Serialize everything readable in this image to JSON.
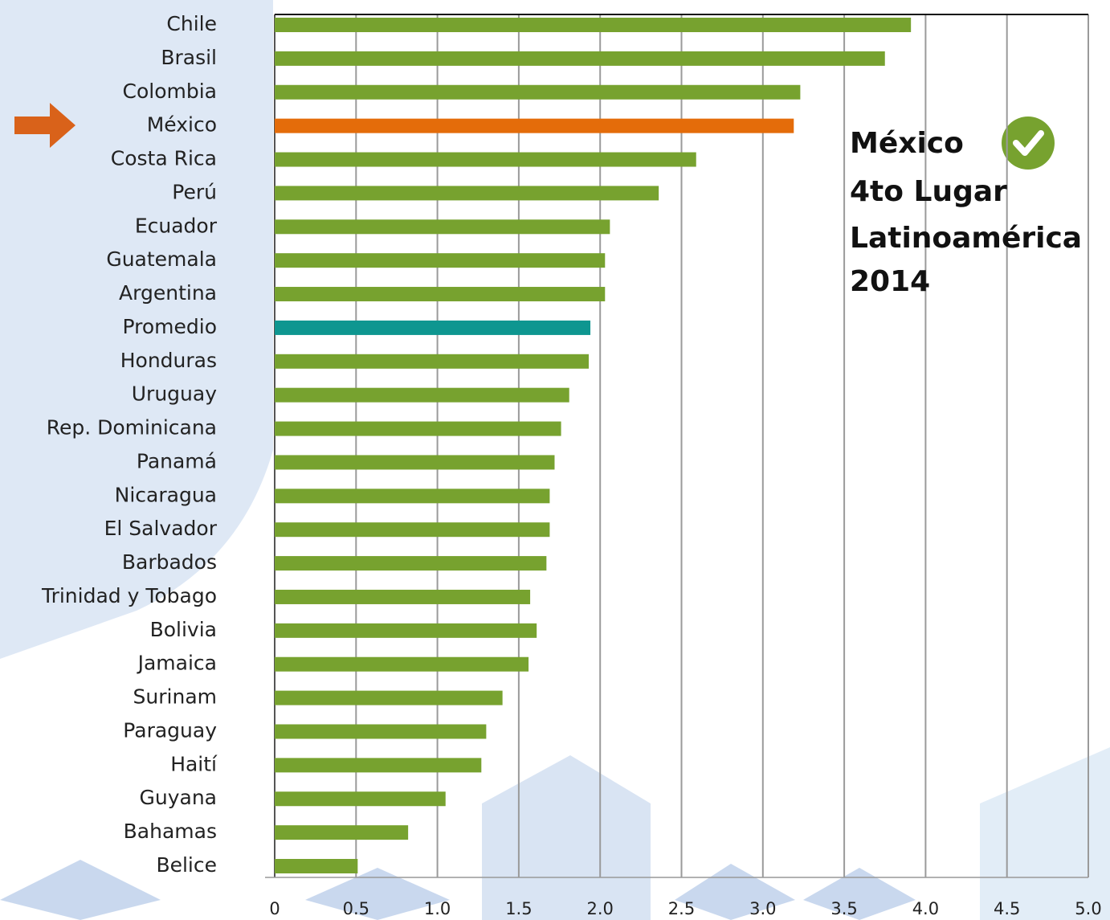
{
  "chart_data": {
    "type": "barh",
    "categories": [
      "Chile",
      "Brasil",
      "Colombia",
      "México",
      "Costa Rica",
      "Perú",
      "Ecuador",
      "Guatemala",
      "Argentina",
      "Promedio",
      "Honduras",
      "Uruguay",
      "Rep. Dominicana",
      "Panamá",
      "Nicaragua",
      "El Salvador",
      "Barbados",
      "Trinidad y Tobago",
      "Bolivia",
      "Jamaica",
      "Surinam",
      "Paraguay",
      "Haití",
      "Guyana",
      "Bahamas",
      "Belice"
    ],
    "values": [
      3.91,
      3.75,
      3.23,
      3.19,
      2.59,
      2.36,
      2.06,
      2.03,
      2.03,
      1.94,
      1.93,
      1.81,
      1.76,
      1.72,
      1.69,
      1.69,
      1.67,
      1.57,
      1.61,
      1.56,
      1.4,
      1.3,
      1.27,
      1.05,
      0.82,
      0.51
    ],
    "colors": [
      "#77a22f",
      "#77a22f",
      "#77a22f",
      "#e46c0a",
      "#77a22f",
      "#77a22f",
      "#77a22f",
      "#77a22f",
      "#77a22f",
      "#0e9690",
      "#77a22f",
      "#77a22f",
      "#77a22f",
      "#77a22f",
      "#77a22f",
      "#77a22f",
      "#77a22f",
      "#77a22f",
      "#77a22f",
      "#77a22f",
      "#77a22f",
      "#77a22f",
      "#77a22f",
      "#77a22f",
      "#77a22f",
      "#77a22f"
    ],
    "xlim": [
      0,
      5
    ],
    "xticks": [
      0,
      0.5,
      {
        "value": 1,
        "label": "1.0"
      },
      1.5,
      {
        "value": 2,
        "label": "2.0"
      },
      2.5,
      {
        "value": 3,
        "label": "3.0"
      },
      3.5,
      {
        "value": 4,
        "label": "4.0"
      },
      4.5,
      {
        "value": 5,
        "label": "5.0"
      }
    ],
    "grid": true,
    "annotation": [
      "México",
      "4to Lugar",
      "Latinoamérica",
      "2014"
    ]
  }
}
